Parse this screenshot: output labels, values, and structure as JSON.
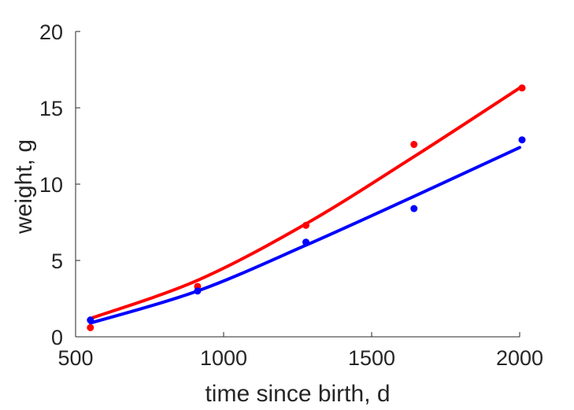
{
  "chart_data": {
    "type": "scatter",
    "title": "",
    "xlabel": "time since birth, d",
    "ylabel": "weight, g",
    "xlim": [
      500,
      2000
    ],
    "ylim": [
      0,
      20
    ],
    "xticks": [
      500,
      1000,
      1500,
      2000
    ],
    "yticks": [
      0,
      5,
      10,
      15,
      20
    ],
    "xtick_labels": [
      "500",
      "1000",
      "1500",
      "2000"
    ],
    "ytick_labels": [
      "0",
      "5",
      "10",
      "15",
      "20"
    ],
    "grid": false,
    "legend": "none",
    "series": [
      {
        "color": "#ff0000",
        "points": [
          {
            "x": 550,
            "y": 0.6
          },
          {
            "x": 912,
            "y": 3.3
          },
          {
            "x": 1278,
            "y": 7.3
          },
          {
            "x": 1643,
            "y": 12.6
          },
          {
            "x": 2008,
            "y": 16.3
          }
        ],
        "fit": [
          {
            "x": 550,
            "y": 1.2
          },
          {
            "x": 912,
            "y": 3.7
          },
          {
            "x": 1278,
            "y": 7.4
          },
          {
            "x": 1643,
            "y": 11.8
          },
          {
            "x": 2000,
            "y": 16.3
          }
        ]
      },
      {
        "color": "#0000ff",
        "points": [
          {
            "x": 550,
            "y": 1.1
          },
          {
            "x": 912,
            "y": 3.0
          },
          {
            "x": 1278,
            "y": 6.2
          },
          {
            "x": 1643,
            "y": 8.4
          },
          {
            "x": 2008,
            "y": 12.9
          }
        ],
        "fit": [
          {
            "x": 550,
            "y": 0.9
          },
          {
            "x": 912,
            "y": 3.0
          },
          {
            "x": 1278,
            "y": 6.0
          },
          {
            "x": 1643,
            "y": 9.2
          },
          {
            "x": 2000,
            "y": 12.4
          }
        ]
      }
    ]
  }
}
